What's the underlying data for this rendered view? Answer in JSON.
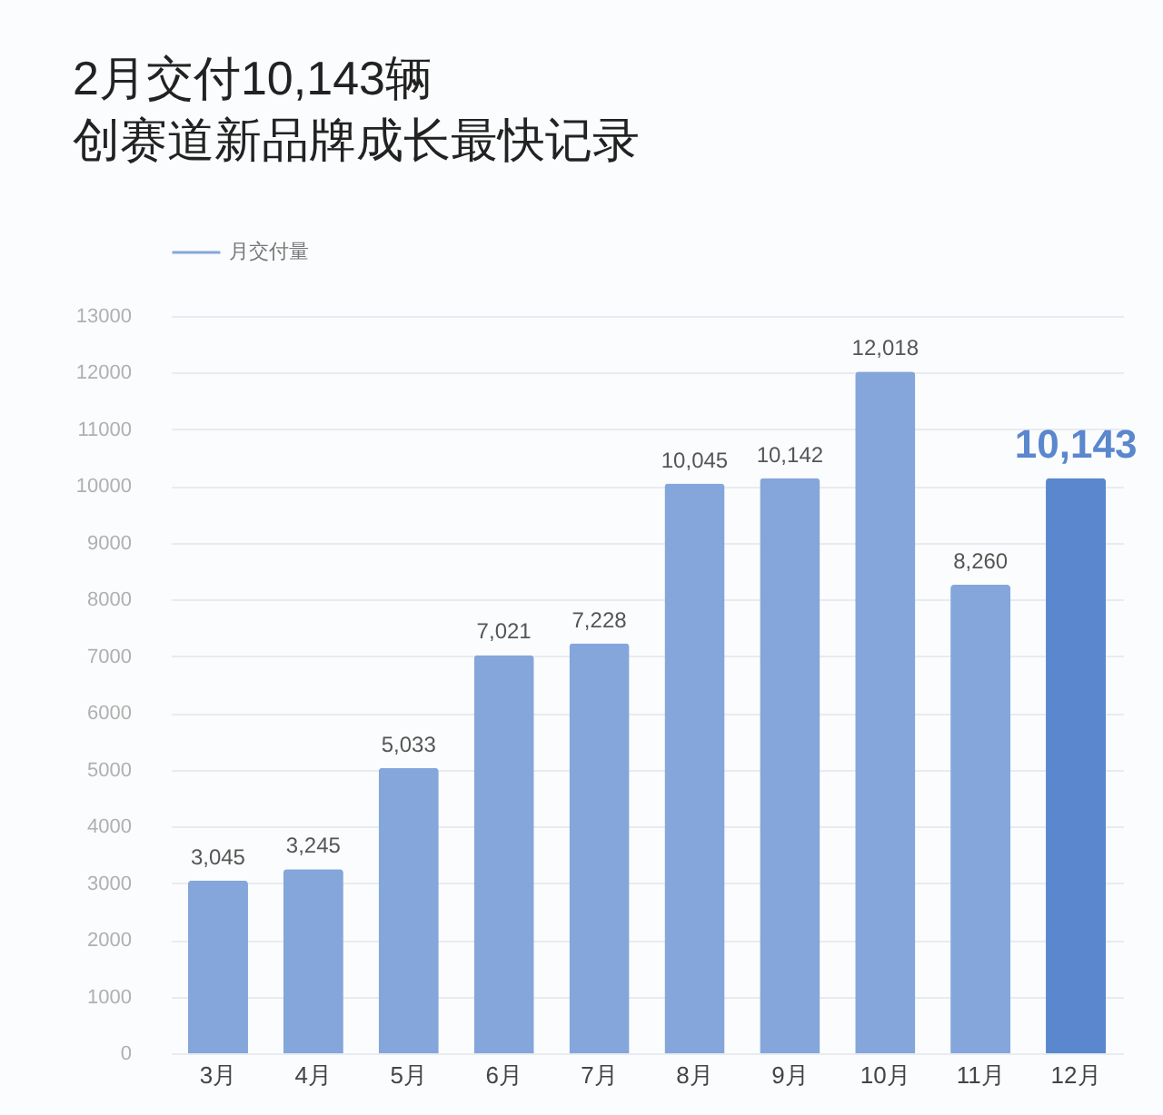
{
  "chart_data": {
    "type": "bar",
    "title": "2月交付10,143辆",
    "subtitle": "创赛道新品牌成长最快记录",
    "categories": [
      "3月",
      "4月",
      "5月",
      "6月",
      "7月",
      "8月",
      "9月",
      "10月",
      "11月",
      "12月"
    ],
    "series": [
      {
        "name": "月交付量",
        "color": "#84a6da",
        "values": [
          3045,
          3245,
          5033,
          7021,
          7228,
          10045,
          10142,
          12018,
          8260,
          10143
        ],
        "colors": [
          "#84a6da",
          "#84a6da",
          "#84a6da",
          "#84a6da",
          "#84a6da",
          "#84a6da",
          "#84a6da",
          "#84a6da",
          "#84a6da",
          "#5a87cd"
        ],
        "value_labels": [
          "3,045",
          "3,245",
          "5,033",
          "7,021",
          "7,228",
          "10,045",
          "10,142",
          "12,018",
          "8,260",
          "10,143"
        ]
      }
    ],
    "ylim": [
      0,
      13000
    ],
    "yticks": [
      0,
      1000,
      2000,
      3000,
      4000,
      5000,
      6000,
      7000,
      8000,
      9000,
      10000,
      11000,
      12000,
      13000
    ],
    "grid": "y",
    "legend": "top left"
  }
}
